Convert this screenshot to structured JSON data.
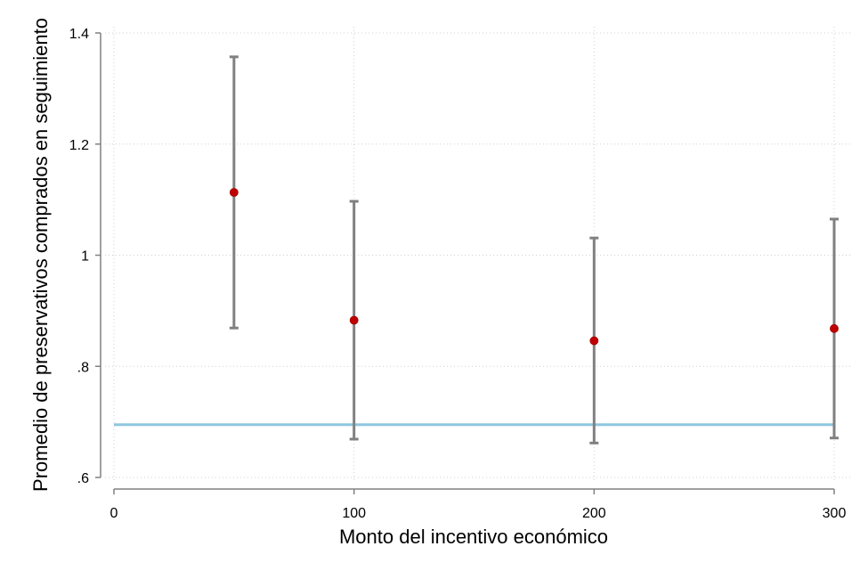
{
  "chart_data": {
    "type": "scatter",
    "xlabel": "Monto del incentivo económico",
    "ylabel": "Promedio de preservativos comprados en seguimiento",
    "xlim": [
      0,
      300
    ],
    "ylim": [
      0.6,
      1.4
    ],
    "x_ticks": [
      0,
      100,
      200,
      300
    ],
    "x_tick_labels": [
      "0",
      "100",
      "200",
      "300"
    ],
    "y_ticks": [
      0.6,
      0.8,
      1.0,
      1.2,
      1.4
    ],
    "y_tick_labels": [
      ".6",
      ".8",
      "1",
      "1.2",
      "1.4"
    ],
    "grid": true,
    "series": [
      {
        "x": [
          50,
          100,
          200,
          300
        ],
        "y": [
          1.113,
          0.883,
          0.846,
          0.868
        ],
        "lower": [
          0.869,
          0.669,
          0.662,
          0.671
        ],
        "upper": [
          1.357,
          1.097,
          1.031,
          1.065
        ],
        "marker_color": "#c00000",
        "errorbar_color": "#808080"
      }
    ],
    "reference_line": {
      "y": 0.695,
      "color": "#8ec6e0"
    }
  }
}
